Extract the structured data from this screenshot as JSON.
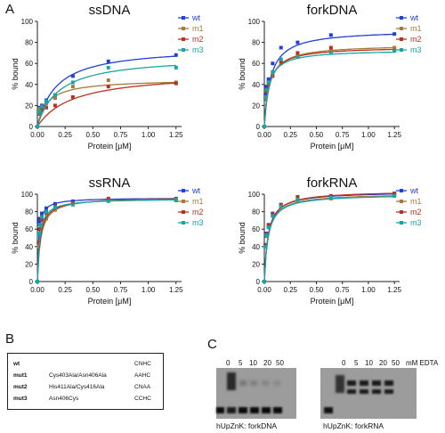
{
  "panels": {
    "A": "A",
    "B": "B",
    "C": "C"
  },
  "colors": {
    "wt": "#2040d8",
    "m1": "#a87a3a",
    "m2": "#b83222",
    "m3": "#1aa5a5"
  },
  "chart_data": [
    {
      "type": "scatter",
      "title": "ssDNA",
      "xlabel": "Protein [μM]",
      "ylabel": "% bound",
      "xlim": [
        0,
        1.3
      ],
      "ylim": [
        0,
        100
      ],
      "xticks": [
        "0.00",
        "0.25",
        "0.50",
        "0.75",
        "1.00",
        "1.25"
      ],
      "yticks": [
        "0",
        "20",
        "40",
        "60",
        "80",
        "100"
      ],
      "legend_position": "right",
      "x": [
        0,
        0.01,
        0.02,
        0.04,
        0.08,
        0.16,
        0.32,
        0.64,
        1.25
      ],
      "series": [
        {
          "name": "wt",
          "values": [
            0,
            15,
            18,
            20,
            25,
            30,
            48,
            62,
            68
          ],
          "curve": {
            "bmax": 76,
            "kd": 0.17
          }
        },
        {
          "name": "m1",
          "values": [
            0,
            16,
            17,
            18,
            22,
            27,
            38,
            44,
            42
          ],
          "curve": {
            "bmax": 45,
            "kd": 0.09
          }
        },
        {
          "name": "m2",
          "values": [
            0,
            12,
            14,
            16,
            18,
            20,
            28,
            38,
            41
          ],
          "curve": {
            "bmax": 52,
            "kd": 0.32
          }
        },
        {
          "name": "m3",
          "values": [
            0,
            13,
            15,
            19,
            24,
            30,
            42,
            56,
            56
          ],
          "curve": {
            "bmax": 67,
            "kd": 0.19
          }
        }
      ]
    },
    {
      "type": "scatter",
      "title": "forkDNA",
      "xlabel": "Protein [μM]",
      "ylabel": "% bound",
      "xlim": [
        0,
        1.3
      ],
      "ylim": [
        0,
        100
      ],
      "xticks": [
        "0.00",
        "0.25",
        "0.50",
        "0.75",
        "1.00",
        "1.25"
      ],
      "yticks": [
        "0",
        "20",
        "40",
        "60",
        "80",
        "100"
      ],
      "legend_position": "right",
      "x": [
        0,
        0.01,
        0.02,
        0.04,
        0.08,
        0.16,
        0.32,
        0.64,
        1.25
      ],
      "series": [
        {
          "name": "wt",
          "values": [
            0,
            30,
            38,
            45,
            60,
            75,
            80,
            87,
            88
          ],
          "curve": {
            "bmax": 92,
            "kd": 0.06
          }
        },
        {
          "name": "m1",
          "values": [
            0,
            28,
            34,
            42,
            50,
            60,
            68,
            72,
            75
          ],
          "curve": {
            "bmax": 78,
            "kd": 0.05
          }
        },
        {
          "name": "m2",
          "values": [
            0,
            26,
            33,
            40,
            48,
            62,
            70,
            75,
            72
          ],
          "curve": {
            "bmax": 76,
            "kd": 0.045
          }
        },
        {
          "name": "m3",
          "values": [
            0,
            27,
            35,
            42,
            52,
            64,
            66,
            70,
            72
          ],
          "curve": {
            "bmax": 73,
            "kd": 0.04
          }
        }
      ]
    },
    {
      "type": "scatter",
      "title": "ssRNA",
      "xlabel": "Protein [μM]",
      "ylabel": "% bound",
      "xlim": [
        0,
        1.3
      ],
      "ylim": [
        0,
        100
      ],
      "xticks": [
        "0.00",
        "0.25",
        "0.50",
        "0.75",
        "1.00",
        "1.25"
      ],
      "yticks": [
        "0",
        "20",
        "40",
        "60",
        "80",
        "100"
      ],
      "legend_position": "right",
      "x": [
        0,
        0.01,
        0.02,
        0.04,
        0.08,
        0.16,
        0.32,
        0.64,
        1.25
      ],
      "series": [
        {
          "name": "wt",
          "values": [
            0,
            68,
            72,
            78,
            84,
            89,
            92,
            94,
            95
          ],
          "curve": {
            "bmax": 96,
            "kd": 0.012
          }
        },
        {
          "name": "m1",
          "values": [
            0,
            40,
            55,
            65,
            72,
            82,
            90,
            94,
            94
          ],
          "curve": {
            "bmax": 97,
            "kd": 0.03
          }
        },
        {
          "name": "m2",
          "values": [
            0,
            45,
            60,
            70,
            78,
            86,
            90,
            95,
            93
          ],
          "curve": {
            "bmax": 96,
            "kd": 0.025
          }
        },
        {
          "name": "m3",
          "values": [
            0,
            55,
            65,
            74,
            80,
            85,
            88,
            92,
            93
          ],
          "curve": {
            "bmax": 95,
            "kd": 0.02
          }
        }
      ]
    },
    {
      "type": "scatter",
      "title": "forkRNA",
      "xlabel": "Protein [μM]",
      "ylabel": "% bound",
      "xlim": [
        0,
        1.3
      ],
      "ylim": [
        0,
        100
      ],
      "xticks": [
        "0.00",
        "0.25",
        "0.50",
        "0.75",
        "1.00",
        "1.25"
      ],
      "yticks": [
        "0",
        "20",
        "40",
        "60",
        "80",
        "100"
      ],
      "legend_position": "right",
      "x": [
        0,
        0.01,
        0.02,
        0.04,
        0.08,
        0.16,
        0.32,
        0.64,
        1.25
      ],
      "series": [
        {
          "name": "wt",
          "values": [
            0,
            42,
            55,
            65,
            78,
            88,
            95,
            98,
            100
          ],
          "curve": {
            "bmax": 103,
            "kd": 0.035
          }
        },
        {
          "name": "m1",
          "values": [
            0,
            40,
            52,
            63,
            76,
            86,
            93,
            95,
            99
          ],
          "curve": {
            "bmax": 101,
            "kd": 0.036
          }
        },
        {
          "name": "m2",
          "values": [
            0,
            41,
            54,
            64,
            77,
            88,
            97,
            98,
            101
          ],
          "curve": {
            "bmax": 104,
            "kd": 0.037
          }
        },
        {
          "name": "m3",
          "values": [
            0,
            40,
            53,
            62,
            75,
            86,
            94,
            96,
            98
          ],
          "curve": {
            "bmax": 100,
            "kd": 0.036
          }
        }
      ]
    }
  ],
  "table": {
    "rows": [
      {
        "name": "wt",
        "mutation": "",
        "code": "CNHC"
      },
      {
        "name": "mut1",
        "mutation": "Cys403Ala/Asn406Ala",
        "code": "AAHC"
      },
      {
        "name": "mut2",
        "mutation": "His411Ala/Cys416Ala",
        "code": "CNAA"
      },
      {
        "name": "mut3",
        "mutation": "Asn406Cys",
        "code": "CCHC"
      }
    ]
  },
  "gels": {
    "edta_label": "mM EDTA",
    "lanes": [
      "0",
      "5",
      "10",
      "20",
      "50"
    ],
    "left_caption": "hUpZnK: forkDNA",
    "right_caption": "hUpZnK: forkRNA"
  }
}
